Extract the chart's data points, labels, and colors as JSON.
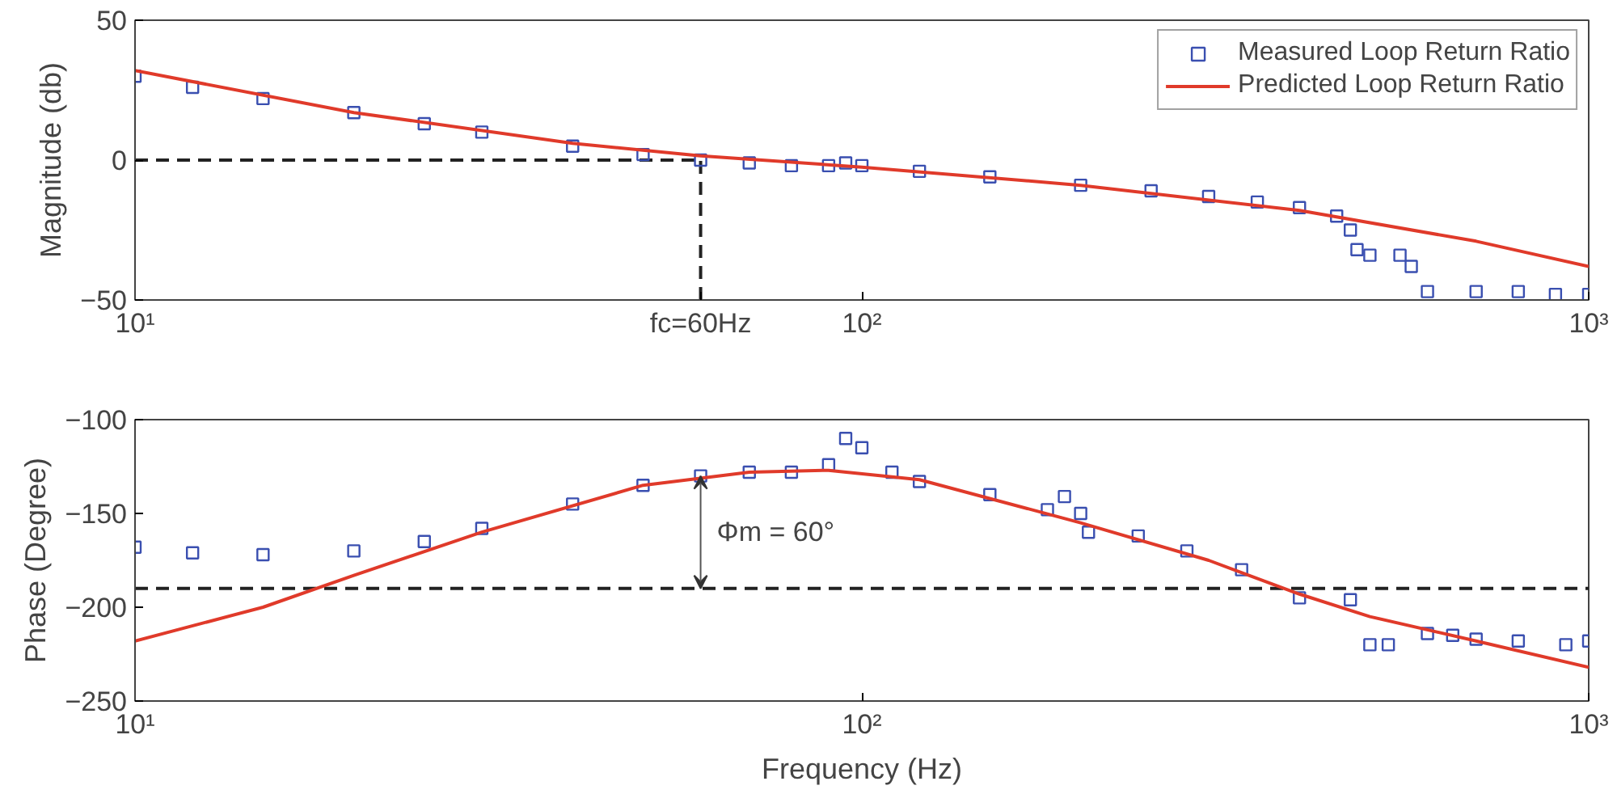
{
  "chart_data": [
    {
      "type": "line",
      "ylabel": "Magnitude (db)",
      "log": "x",
      "xlim": [
        10,
        1000
      ],
      "ylim": [
        -50,
        50
      ],
      "xticks": [
        {
          "value": 10,
          "label": "10¹"
        },
        {
          "value": 60,
          "label": "fc=60Hz"
        },
        {
          "value": 100,
          "label": "10²"
        },
        {
          "value": 1000,
          "label": "10³"
        }
      ],
      "yticks": [
        -50,
        0,
        50
      ],
      "grid": false,
      "legend": "top right",
      "series": [
        {
          "name": "Measured Loop Return Ratio",
          "type": "scatter",
          "marker": "square",
          "color": "#3a4fb0",
          "x": [
            10,
            12,
            15,
            20,
            25,
            30,
            40,
            50,
            60,
            70,
            80,
            90,
            95,
            100,
            120,
            150,
            200,
            250,
            300,
            350,
            400,
            450,
            470,
            480,
            500,
            550,
            570,
            600,
            700,
            800,
            900,
            1000
          ],
          "values": [
            30,
            26,
            22,
            17,
            13,
            10,
            5,
            2,
            0,
            -1,
            -2,
            -2,
            -1,
            -2,
            -4,
            -6,
            -9,
            -11,
            -13,
            -15,
            -17,
            -20,
            -25,
            -32,
            -34,
            -34,
            -38,
            -47,
            -47,
            -47,
            -48,
            -48
          ]
        },
        {
          "name": "Predicted Loop Return Ratio",
          "line_style": "solid",
          "color": "#e03a2a",
          "x": [
            10,
            20,
            40,
            60,
            100,
            200,
            400,
            700,
            1000
          ],
          "values": [
            32,
            17,
            6,
            1.5,
            -2.5,
            -9,
            -18,
            -29,
            -38
          ]
        }
      ],
      "ref_lines": [
        {
          "axis": "y",
          "value": 0,
          "line_style": "dashed",
          "color": "#222222"
        },
        {
          "axis": "x",
          "value": 60,
          "line_style": "dashed",
          "color": "#222222"
        }
      ]
    },
    {
      "type": "line",
      "ylabel": "Phase (Degree)",
      "xlabel": "Frequency (Hz)",
      "log": "x",
      "xlim": [
        10,
        1000
      ],
      "ylim": [
        -250,
        -100
      ],
      "xticks": [
        {
          "value": 10,
          "label": "10¹"
        },
        {
          "value": 100,
          "label": "10²"
        },
        {
          "value": 1000,
          "label": "10³"
        }
      ],
      "yticks": [
        -250,
        -200,
        -150,
        -100
      ],
      "grid": false,
      "legend": false,
      "series": [
        {
          "type": "scatter",
          "marker": "square",
          "color": "#3a4fb0",
          "x": [
            10,
            12,
            15,
            20,
            25,
            30,
            40,
            50,
            60,
            70,
            80,
            90,
            95,
            100,
            110,
            120,
            150,
            180,
            190,
            200,
            205,
            240,
            280,
            333,
            400,
            470,
            500,
            530,
            600,
            650,
            700,
            800,
            930,
            1000
          ],
          "values": [
            -168,
            -171,
            -172,
            -170,
            -165,
            -158,
            -145,
            -135,
            -130,
            -128,
            -128,
            -124,
            -110,
            -115,
            -128,
            -133,
            -140,
            -148,
            -141,
            -150,
            -160,
            -162,
            -170,
            -180,
            -195,
            -196,
            -220,
            -220,
            -214,
            -215,
            -217,
            -218,
            -220,
            -218
          ]
        },
        {
          "line_style": "solid",
          "color": "#e03a2a",
          "x": [
            10,
            15,
            20,
            30,
            50,
            70,
            90,
            120,
            200,
            300,
            400,
            500,
            700,
            1000
          ],
          "values": [
            -218,
            -200,
            -183,
            -160,
            -135,
            -128,
            -127,
            -132,
            -155,
            -175,
            -193,
            -205,
            -218,
            -232
          ]
        }
      ],
      "ref_lines": [
        {
          "axis": "y",
          "value": -190,
          "line_style": "dashed",
          "color": "#222222"
        }
      ],
      "annotations": [
        {
          "text": "Φm = 60°",
          "x": 60,
          "y": -130
        }
      ]
    }
  ]
}
